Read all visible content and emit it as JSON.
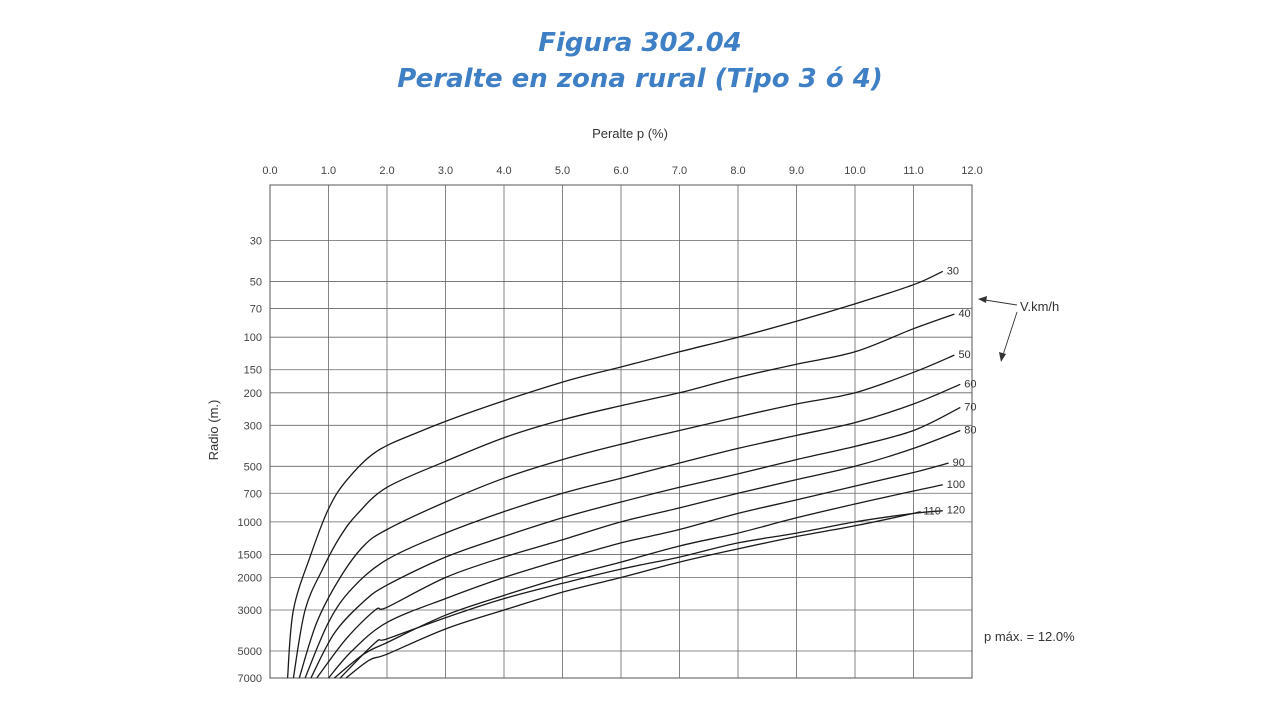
{
  "header": {
    "figure": "Figura 302.04",
    "title": "Peralte en zona rural (Tipo 3 ó 4)"
  },
  "chart_data": {
    "type": "line",
    "title": "Peralte en zona rural (Tipo 3 ó 4)",
    "xlabel": "Peralte p (%)",
    "ylabel": "Radio (m.)",
    "x_axis_position": "top",
    "xlim": [
      0,
      12
    ],
    "x_ticks": [
      "0.0",
      "1.0",
      "2.0",
      "3.0",
      "4.0",
      "5.0",
      "6.0",
      "7.0",
      "8.0",
      "9.0",
      "10.0",
      "11.0",
      "12.0"
    ],
    "y_scale": "log",
    "y_inverted": true,
    "ylim": [
      7000,
      15
    ],
    "y_ticks": [
      "30",
      "50",
      "70",
      "100",
      "150",
      "200",
      "300",
      "500",
      "700",
      "1000",
      "1500",
      "2000",
      "3000",
      "5000",
      "7000"
    ],
    "grid": true,
    "speed_legend": "V.km/h",
    "annotation": "p máx. = 12.0%",
    "series": [
      {
        "name": "30",
        "points": [
          [
            0.3,
            7000
          ],
          [
            0.4,
            3000
          ],
          [
            0.7,
            1500
          ],
          [
            1.0,
            850
          ],
          [
            1.3,
            600
          ],
          [
            1.8,
            420
          ],
          [
            2.5,
            330
          ],
          [
            3.5,
            250
          ],
          [
            5.0,
            175
          ],
          [
            6.0,
            145
          ],
          [
            7.0,
            120
          ],
          [
            8.0,
            100
          ],
          [
            9.0,
            82
          ],
          [
            10.0,
            66
          ],
          [
            11.0,
            52
          ],
          [
            11.5,
            44
          ]
        ]
      },
      {
        "name": "40",
        "points": [
          [
            0.4,
            7000
          ],
          [
            0.6,
            3000
          ],
          [
            0.9,
            1800
          ],
          [
            1.2,
            1200
          ],
          [
            1.5,
            900
          ],
          [
            2.0,
            650
          ],
          [
            3.0,
            470
          ],
          [
            4.0,
            350
          ],
          [
            5.0,
            280
          ],
          [
            6.0,
            235
          ],
          [
            7.0,
            200
          ],
          [
            8.0,
            165
          ],
          [
            9.0,
            140
          ],
          [
            10.0,
            120
          ],
          [
            11.0,
            90
          ],
          [
            11.7,
            75
          ]
        ]
      },
      {
        "name": "50",
        "points": [
          [
            0.5,
            7000
          ],
          [
            0.8,
            3500
          ],
          [
            1.2,
            2000
          ],
          [
            1.6,
            1350
          ],
          [
            2.0,
            1100
          ],
          [
            3.0,
            780
          ],
          [
            4.0,
            580
          ],
          [
            5.0,
            460
          ],
          [
            6.0,
            380
          ],
          [
            7.0,
            320
          ],
          [
            8.0,
            270
          ],
          [
            9.0,
            230
          ],
          [
            10.0,
            200
          ],
          [
            11.0,
            155
          ],
          [
            11.7,
            125
          ]
        ]
      },
      {
        "name": "60",
        "points": [
          [
            0.6,
            7000
          ],
          [
            1.0,
            3500
          ],
          [
            1.4,
            2300
          ],
          [
            2.0,
            1600
          ],
          [
            3.0,
            1150
          ],
          [
            4.0,
            880
          ],
          [
            5.0,
            700
          ],
          [
            6.0,
            580
          ],
          [
            7.0,
            480
          ],
          [
            8.0,
            400
          ],
          [
            9.0,
            340
          ],
          [
            10.0,
            290
          ],
          [
            11.0,
            230
          ],
          [
            11.8,
            180
          ]
        ]
      },
      {
        "name": "70",
        "points": [
          [
            0.7,
            7000
          ],
          [
            1.1,
            4000
          ],
          [
            1.6,
            2700
          ],
          [
            2.0,
            2200
          ],
          [
            3.0,
            1550
          ],
          [
            4.0,
            1200
          ],
          [
            5.0,
            950
          ],
          [
            6.0,
            780
          ],
          [
            7.0,
            650
          ],
          [
            8.0,
            550
          ],
          [
            9.0,
            460
          ],
          [
            10.0,
            390
          ],
          [
            11.0,
            320
          ],
          [
            11.8,
            240
          ]
        ]
      },
      {
        "name": "80",
        "points": [
          [
            0.8,
            7000
          ],
          [
            1.3,
            4300
          ],
          [
            1.8,
            3000
          ],
          [
            2.0,
            2900
          ],
          [
            3.0,
            2000
          ],
          [
            4.0,
            1550
          ],
          [
            5.0,
            1250
          ],
          [
            6.0,
            1000
          ],
          [
            7.0,
            840
          ],
          [
            8.0,
            700
          ],
          [
            9.0,
            590
          ],
          [
            10.0,
            500
          ],
          [
            11.0,
            400
          ],
          [
            11.8,
            320
          ]
        ]
      },
      {
        "name": "90",
        "points": [
          [
            1.0,
            7000
          ],
          [
            1.4,
            5000
          ],
          [
            2.0,
            3500
          ],
          [
            3.0,
            2600
          ],
          [
            4.0,
            2000
          ],
          [
            5.0,
            1600
          ],
          [
            6.0,
            1300
          ],
          [
            7.0,
            1100
          ],
          [
            8.0,
            900
          ],
          [
            9.0,
            760
          ],
          [
            10.0,
            640
          ],
          [
            11.0,
            540
          ],
          [
            11.6,
            480
          ]
        ]
      },
      {
        "name": "100",
        "points": [
          [
            1.1,
            7000
          ],
          [
            1.6,
            5200
          ],
          [
            2.0,
            4500
          ],
          [
            3.0,
            3200
          ],
          [
            4.0,
            2500
          ],
          [
            5.0,
            2000
          ],
          [
            6.0,
            1650
          ],
          [
            7.0,
            1350
          ],
          [
            8.0,
            1150
          ],
          [
            9.0,
            950
          ],
          [
            10.0,
            800
          ],
          [
            11.0,
            680
          ],
          [
            11.5,
            630
          ]
        ]
      },
      {
        "name": "110",
        "points": [
          [
            1.3,
            7000
          ],
          [
            1.7,
            5600
          ],
          [
            2.0,
            5200
          ],
          [
            3.0,
            3800
          ],
          [
            4.0,
            3000
          ],
          [
            5.0,
            2400
          ],
          [
            6.0,
            2000
          ],
          [
            7.0,
            1650
          ],
          [
            8.0,
            1400
          ],
          [
            9.0,
            1200
          ],
          [
            10.0,
            1050
          ],
          [
            11.0,
            900
          ],
          [
            11.1,
            880
          ]
        ]
      },
      {
        "name": "120",
        "points": [
          [
            1.2,
            7000
          ],
          [
            1.8,
            4500
          ],
          [
            2.0,
            4300
          ],
          [
            3.0,
            3300
          ],
          [
            4.0,
            2600
          ],
          [
            5.0,
            2150
          ],
          [
            6.0,
            1800
          ],
          [
            7.0,
            1550
          ],
          [
            8.0,
            1300
          ],
          [
            9.0,
            1150
          ],
          [
            10.0,
            1000
          ],
          [
            11.0,
            900
          ],
          [
            11.5,
            870
          ]
        ]
      }
    ]
  }
}
